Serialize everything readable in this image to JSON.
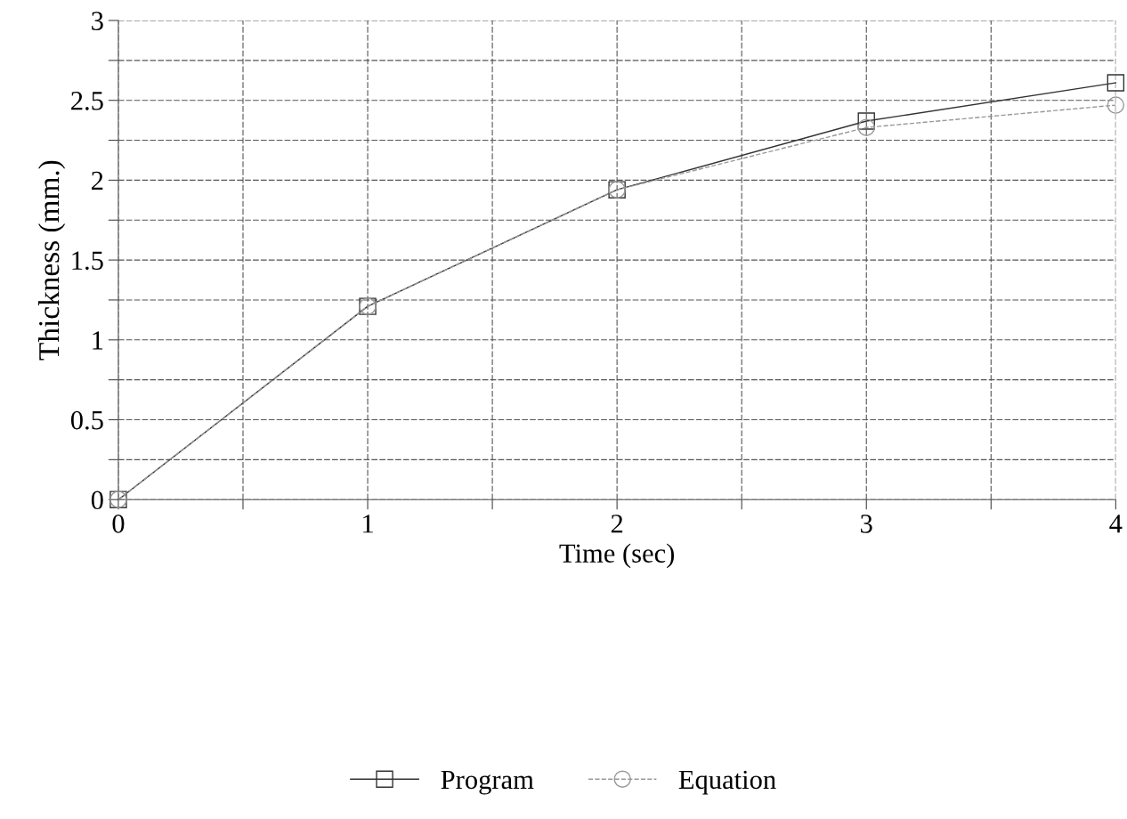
{
  "chart_data": {
    "type": "line",
    "xlabel": "Time (sec)",
    "ylabel": "Thickness (mm.)",
    "x": [
      0,
      1,
      2,
      3,
      4
    ],
    "series": [
      {
        "name": "Program",
        "color": "#333333",
        "values": [
          0,
          1.21,
          1.94,
          2.37,
          2.61
        ],
        "marker": "square",
        "line_style": "solid"
      },
      {
        "name": "Equation",
        "color": "#999999",
        "values": [
          0,
          1.21,
          1.94,
          2.33,
          2.47
        ],
        "marker": "circle",
        "line_style": "dashed"
      }
    ],
    "xlim": [
      0,
      4
    ],
    "xticks": [
      0,
      {
        "value": 0.5,
        "label": null
      },
      1,
      {
        "value": 1.5,
        "label": null
      },
      2,
      {
        "value": 2.5,
        "label": null
      },
      3,
      {
        "value": 3.5,
        "label": null
      },
      4
    ],
    "ylim": [
      0,
      3
    ],
    "yticks": [
      0,
      {
        "value": 0.25,
        "label": null
      },
      0.5,
      {
        "value": 0.75,
        "label": null
      },
      1,
      {
        "value": 1.25,
        "label": null
      },
      1.5,
      {
        "value": 1.75,
        "label": null
      },
      2,
      {
        "value": 2.25,
        "label": null
      },
      2.5,
      {
        "value": 2.75,
        "label": null
      },
      3
    ],
    "grid": true,
    "legend": "bottom"
  }
}
